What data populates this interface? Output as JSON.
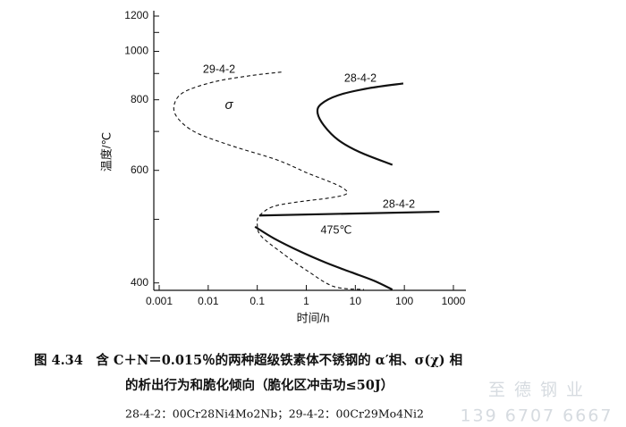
{
  "chart_data": {
    "type": "line",
    "xlabel": "时间/h",
    "ylabel": "温度/℃",
    "xscale": "log",
    "yscale": "reciprocal-kelvin",
    "xlim": [
      0.001,
      1000
    ],
    "xticks": [
      0.001,
      0.01,
      0.1,
      1,
      10,
      100,
      1000
    ],
    "ylim": [
      390,
      1200
    ],
    "yticks": [
      400,
      600,
      800,
      1000,
      1200
    ],
    "yminorticks": [
      500,
      700,
      900,
      1100
    ],
    "series": [
      {
        "color": "#111111",
        "dashed": true,
        "x": [
          0.31,
          0.072,
          0.013,
          0.0031,
          0.002,
          0.0025,
          0.0058,
          0.031,
          0.25,
          1.1,
          3.1,
          5.8,
          6.6,
          3.1,
          0.58,
          0.2,
          0.11,
          0.1,
          0.12,
          0.33,
          1.1,
          3.7,
          15
        ],
        "values": [
          906,
          891,
          866,
          826,
          778,
          736,
          696,
          660,
          625,
          593,
          574,
          560,
          549,
          541,
          532,
          523,
          506,
          491,
          471,
          443,
          416,
          395,
          391
        ]
      },
      {
        "color": "#111111",
        "dashed": false,
        "x": [
          95,
          19,
          4.5,
          2.0,
          1.7,
          2.3,
          4.5,
          12.4,
          57
        ],
        "values": [
          860,
          842,
          816,
          785,
          756,
          717,
          676,
          644,
          613
        ]
      },
      {
        "color": "#111111",
        "dashed": false,
        "x": [
          0.11,
          518
        ],
        "values": [
          507,
          514
        ]
      },
      {
        "color": "#111111",
        "dashed": false,
        "x": [
          0.09,
          0.22,
          0.75,
          2.5,
          8.2,
          24,
          57
        ],
        "values": [
          487,
          467,
          446,
          429,
          415,
          403,
          391
        ]
      }
    ],
    "annotations": [
      "29-4-2",
      "σ",
      "28-4-2",
      "28-4-2",
      "475℃"
    ],
    "caption": [
      "图 4.34　含 C＋N＝0.015％的两种超级铁素体不锈钢的 α′相、σ(χ) 相",
      "的析出行为和脆化倾向（脆化区冲击功≤50J）",
      "28-4-2：00Cr28Ni4Mo2Nb；29-4-2：00Cr29Mo4Ni2"
    ],
    "watermark": [
      "至 德 钢 业",
      "139 6707 6667"
    ]
  }
}
